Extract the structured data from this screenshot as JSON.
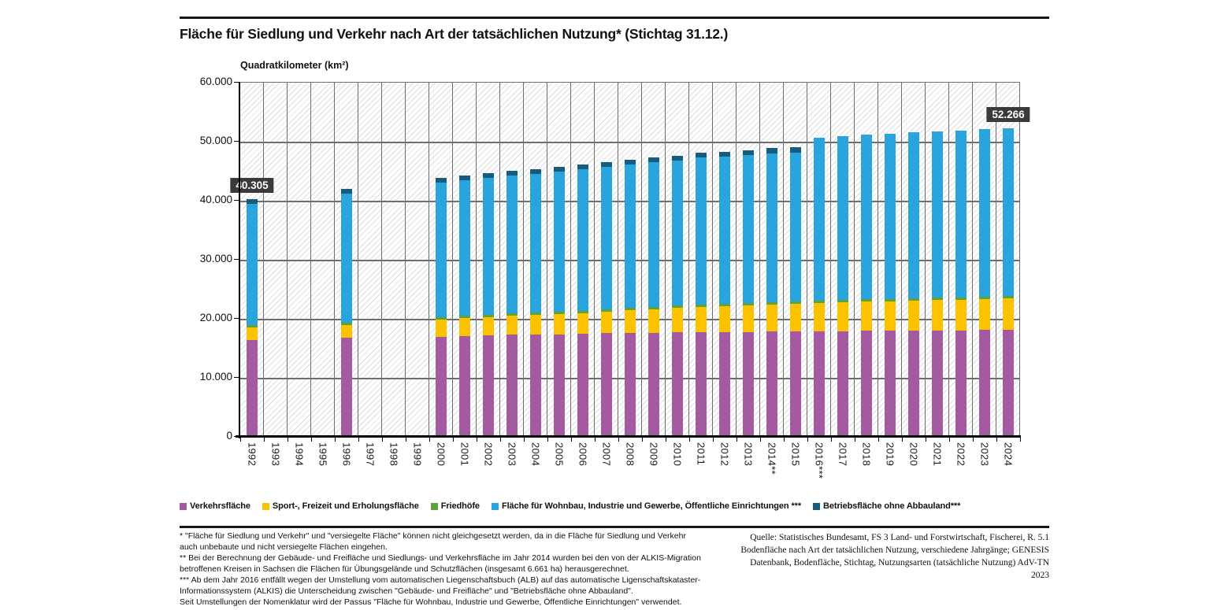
{
  "page": {
    "title": "Fläche für Siedlung und Verkehr nach Art der tatsächlichen Nutzung* (Stichtag 31.12.)"
  },
  "chart_data": {
    "type": "bar",
    "stacked": true,
    "title": "Fläche für Siedlung und Verkehr nach Art der tatsächlichen Nutzung* (Stichtag 31.12.)",
    "xlabel": "",
    "ylabel": "Quadratkilometer (km²)",
    "ylim": [
      0,
      60000
    ],
    "ytick_step": 10000,
    "ytick_labels": [
      "0",
      "10.000",
      "20.000",
      "30.000",
      "40.000",
      "50.000",
      "60.000"
    ],
    "grid": true,
    "background": "diagonal-hatch",
    "legend_position": "bottom",
    "categories": [
      "1992",
      "1993",
      "1994",
      "1995",
      "1996",
      "1997",
      "1998",
      "1999",
      "2000",
      "2001",
      "2002",
      "2003",
      "2004",
      "2005",
      "2006",
      "2007",
      "2008",
      "2009",
      "2010",
      "2011",
      "2012",
      "2013",
      "2014**",
      "2015",
      "2016***",
      "2017",
      "2018",
      "2019",
      "2020",
      "2021",
      "2022",
      "2023",
      "2024"
    ],
    "series": [
      {
        "name": "Verkehrsfläche",
        "color": "#A35AA0",
        "values": [
          16400,
          null,
          null,
          null,
          16750,
          null,
          null,
          null,
          17000,
          17100,
          17200,
          17300,
          17350,
          17400,
          17500,
          17550,
          17600,
          17650,
          17700,
          17750,
          17800,
          17800,
          17850,
          17850,
          17900,
          17900,
          17950,
          17950,
          18000,
          18000,
          18050,
          18100,
          18150
        ]
      },
      {
        "name": "Sport-, Freizeit und Erholungsfläche",
        "color": "#FCC200",
        "values": [
          2100,
          null,
          null,
          null,
          2150,
          null,
          null,
          null,
          2900,
          3000,
          3100,
          3200,
          3300,
          3400,
          3500,
          3700,
          3850,
          4000,
          4200,
          4300,
          4400,
          4500,
          4600,
          4700,
          4800,
          4900,
          5000,
          5050,
          5100,
          5150,
          5200,
          5250,
          5300
        ]
      },
      {
        "name": "Friedhöfe",
        "color": "#5CA33B",
        "values": [
          400,
          null,
          null,
          null,
          400,
          null,
          null,
          null,
          400,
          400,
          400,
          400,
          400,
          400,
          400,
          400,
          400,
          400,
          400,
          400,
          400,
          400,
          400,
          400,
          400,
          400,
          400,
          400,
          400,
          400,
          400,
          400,
          400
        ]
      },
      {
        "name": "Fläche für Wohnbau, Industrie und Gewerbe, Öffentliche Einrichtungen ***",
        "color": "#29A4DC",
        "values": [
          20605,
          null,
          null,
          null,
          21900,
          null,
          null,
          null,
          22800,
          23000,
          23200,
          23400,
          23550,
          23800,
          24000,
          24050,
          24350,
          24450,
          24500,
          24850,
          24900,
          25100,
          25150,
          25250,
          27600,
          27800,
          27850,
          28000,
          28100,
          28250,
          28250,
          28350,
          28416
        ]
      },
      {
        "name": "Betriebsfläche ohne Abbauland***",
        "color": "#175C7D",
        "values": [
          800,
          null,
          null,
          null,
          800,
          null,
          null,
          null,
          800,
          800,
          800,
          800,
          800,
          800,
          800,
          800,
          800,
          800,
          800,
          800,
          800,
          800,
          900,
          900,
          0,
          0,
          0,
          0,
          0,
          0,
          0,
          0,
          0
        ]
      }
    ],
    "totals": [
      40305,
      null,
      null,
      null,
      42000,
      null,
      null,
      null,
      43900,
      44300,
      44700,
      45100,
      45400,
      45800,
      46200,
      46500,
      47000,
      47300,
      47600,
      48100,
      48300,
      48600,
      48900,
      49100,
      50700,
      51000,
      51200,
      51400,
      51600,
      51800,
      51900,
      52100,
      52266
    ],
    "annotations": [
      {
        "category": "1992",
        "label": "40.305"
      },
      {
        "category": "2024",
        "label": "52.266"
      }
    ]
  },
  "footnotes": [
    "* \"Fläche für Siedlung und Verkehr\" und \"versiegelte Fläche\" können nicht gleichgesetzt werden, da in die Fläche für Siedlung und Verkehr auch unbebaute und nicht versiegelte Flächen eingehen.",
    "** Bei der Berechnung der Gebäude- und Freifläche und Siedlungs- und Verkehrsfläche im Jahr 2014 wurden bei den von der ALKIS-Migration betroffenen Kreisen in Sachsen die Flächen für Übungsgelände und Schutzflächen (insgesamt 6.661 ha) herausgerechnet.",
    "*** Ab dem Jahr 2016 entfällt wegen der Umstellung vom automatischen Liegenschaftsbuch (ALB) auf das automatische Ligenschaftskataster-Informationssystem (ALKIS) die Unterscheidung zwischen \"Gebäude- und Freifläche\" und \"Betriebsfläche ohne Abbauland\".",
    "Seit Umstellungen der Nomenklatur wird der Passus \"Fläche für Wohnbau, Industrie und Gewerbe, Öffentliche Einrichtungen\" verwendet."
  ],
  "source": "Quelle: Statistisches Bundesamt, FS 3 Land- und Forstwirtschaft, Fischerei, R. 5.1 Bodenfläche nach Art der tatsächlichen Nutzung, verschiedene Jahrgänge; GENESIS Datenbank, Bodenfläche, Stichtag, Nutzungsarten (tatsächliche Nutzung) AdV-TN 2023"
}
